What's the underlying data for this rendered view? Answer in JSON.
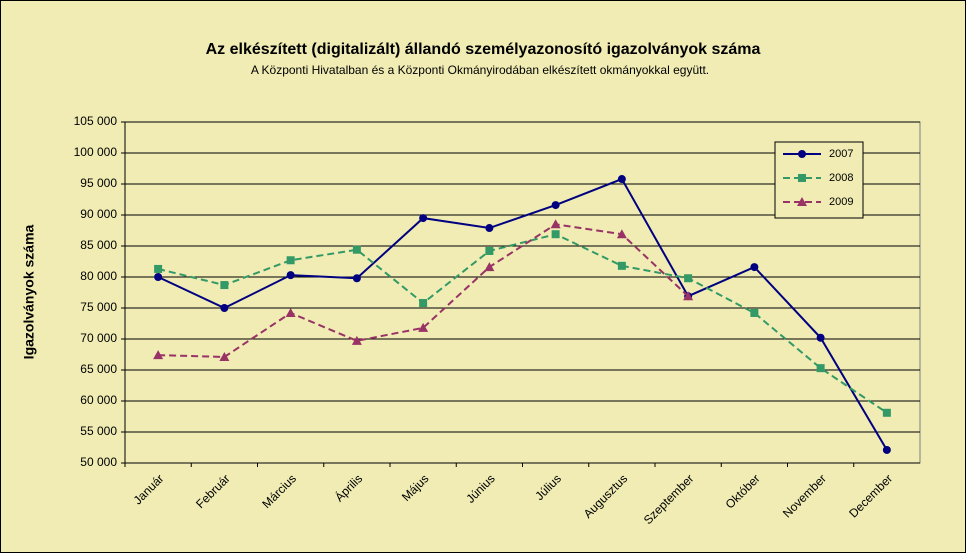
{
  "chart_data": {
    "type": "line",
    "title": "Az elkészített (digitalizált) állandó személyazonosító igazolványok száma",
    "subtitle": "A Központi Hivatalban és a Központi Okmányirodában elkészített okmányokkal együtt.",
    "y_label": "Igazolványok száma",
    "categories": [
      "Január",
      "Február",
      "Március",
      "Április",
      "Május",
      "Június",
      "Július",
      "Augusztus",
      "Szeptember",
      "Október",
      "November",
      "December"
    ],
    "series": [
      {
        "name": "2007",
        "color": "#000080",
        "marker": "circle",
        "dash": false,
        "values": [
          80000,
          75000,
          80300,
          79800,
          89500,
          87900,
          91600,
          95800,
          76900,
          81600,
          70200,
          52100
        ]
      },
      {
        "name": "2008",
        "color": "#339966",
        "marker": "square",
        "dash": true,
        "values": [
          81300,
          78700,
          82700,
          84400,
          75800,
          84200,
          86900,
          81800,
          79800,
          74200,
          65300,
          58100
        ]
      },
      {
        "name": "2009",
        "color": "#993366",
        "marker": "triangle",
        "dash": true,
        "values": [
          67400,
          67100,
          74200,
          69700,
          71800,
          81600,
          88500,
          86900,
          76900,
          null,
          null,
          null
        ]
      }
    ],
    "ylim": [
      50000,
      105000
    ],
    "yticks": [
      {
        "value": 50000,
        "label": "50 000"
      },
      {
        "value": 55000,
        "label": "55 000"
      },
      {
        "value": 60000,
        "label": "60 000"
      },
      {
        "value": 65000,
        "label": "65 000"
      },
      {
        "value": 70000,
        "label": "70 000"
      },
      {
        "value": 75000,
        "label": "75 000"
      },
      {
        "value": 80000,
        "label": "80 000"
      },
      {
        "value": 85000,
        "label": "85 000"
      },
      {
        "value": 90000,
        "label": "90 000"
      },
      {
        "value": 95000,
        "label": "95 000"
      },
      {
        "value": 100000,
        "label": "100 000"
      },
      {
        "value": 105000,
        "label": "105 000"
      }
    ],
    "grid": true,
    "legend": "top-right"
  }
}
